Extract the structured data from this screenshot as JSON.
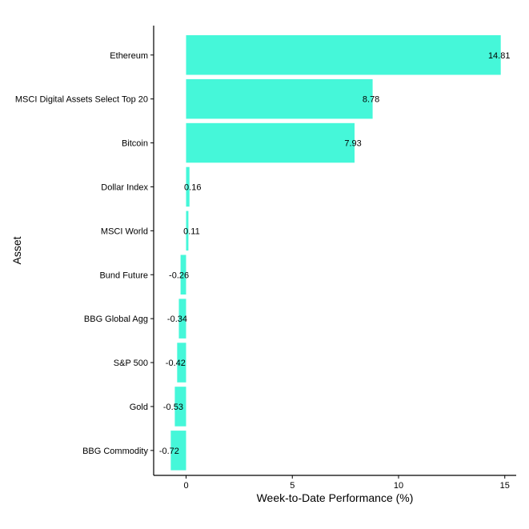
{
  "chart_data": {
    "type": "bar",
    "orientation": "horizontal",
    "categories": [
      "Ethereum",
      "MSCI Digital Assets Select Top 20",
      "Bitcoin",
      "Dollar Index",
      "MSCI World",
      "Bund Future",
      "BBG Global Agg",
      "S&P 500",
      "Gold",
      "BBG Commodity"
    ],
    "values": [
      14.81,
      8.78,
      7.93,
      0.16,
      0.11,
      -0.26,
      -0.34,
      -0.42,
      -0.53,
      -0.72
    ],
    "value_labels": [
      "14.81",
      "8.78",
      "7.93",
      "0.16",
      "0.11",
      "-0.26",
      "-0.34",
      "-0.42",
      "-0.53",
      "-0.72"
    ],
    "xlabel": "Week-to-Date Performance (%)",
    "ylabel": "Asset",
    "xlim": [
      -1.5,
      15.5
    ],
    "xticks": [
      0,
      5,
      10,
      15
    ],
    "xtick_labels": [
      "0",
      "5",
      "10",
      "15"
    ],
    "grid": false,
    "legend": "none",
    "bar_color": "#45f7d9"
  }
}
